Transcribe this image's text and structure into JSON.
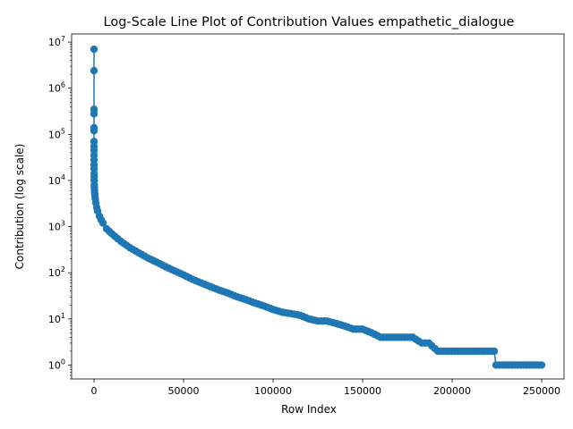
{
  "chart_data": {
    "type": "line",
    "title": "Log-Scale Line Plot of Contribution Values empathetic_dialogue",
    "xlabel": "Row Index",
    "ylabel": "Contribution (log scale)",
    "xlim": [
      -12500,
      262500
    ],
    "ylim": [
      0.5,
      15000000
    ],
    "yscale": "log",
    "grid": false,
    "legend": "none",
    "x_ticks": [
      {
        "value": 0,
        "label": "0"
      },
      {
        "value": 50000,
        "label": "50000"
      },
      {
        "value": 100000,
        "label": "100000"
      },
      {
        "value": 150000,
        "label": "150000"
      },
      {
        "value": 200000,
        "label": "200000"
      },
      {
        "value": 250000,
        "label": "250000"
      }
    ],
    "y_ticks": [
      {
        "value": 1,
        "exp": "0"
      },
      {
        "value": 10,
        "exp": "1"
      },
      {
        "value": 100,
        "exp": "2"
      },
      {
        "value": 1000,
        "exp": "3"
      },
      {
        "value": 10000,
        "exp": "4"
      },
      {
        "value": 100000,
        "exp": "5"
      },
      {
        "value": 1000000,
        "exp": "6"
      },
      {
        "value": 10000000,
        "exp": "7"
      }
    ],
    "tick_base": "10",
    "color": "#1f77b4",
    "series": [
      {
        "x": [
          0,
          1,
          2,
          3,
          4,
          5,
          6,
          8,
          10,
          15,
          20,
          30,
          40,
          60,
          80,
          100,
          150,
          200,
          300,
          400,
          500,
          700,
          1000,
          1500,
          2000,
          3000,
          4000,
          5000,
          7000,
          10000,
          15000,
          20000,
          25000,
          30000,
          35000,
          40000,
          45000,
          50000,
          55000,
          60000,
          65000,
          70000,
          75000,
          80000,
          85000,
          90000,
          95000,
          100000,
          105000,
          110000,
          115000,
          120000,
          125000,
          130000,
          135000,
          140000,
          145000,
          150000,
          155000,
          160000,
          165000,
          170000,
          175000,
          178000,
          183000,
          187000,
          192000,
          200000,
          210000,
          220000,
          223500,
          224500,
          230000,
          240000,
          250000
        ],
        "y": [
          7000000,
          2400000,
          350000,
          280000,
          140000,
          120000,
          70000,
          55000,
          45000,
          35000,
          28000,
          22000,
          18000,
          14000,
          12000,
          10000,
          8000,
          7000,
          6000,
          5200,
          4700,
          4000,
          3300,
          2600,
          2200,
          1700,
          1400,
          1200,
          900,
          700,
          480,
          350,
          270,
          210,
          170,
          135,
          110,
          90,
          72,
          60,
          50,
          42,
          36,
          30,
          26,
          22,
          19,
          16,
          14,
          13,
          12,
          10,
          9,
          9,
          8,
          7,
          6,
          6,
          5,
          4,
          4,
          4,
          4,
          4,
          3,
          3,
          2,
          2,
          2,
          2,
          2,
          1,
          1,
          1,
          1
        ]
      }
    ]
  }
}
